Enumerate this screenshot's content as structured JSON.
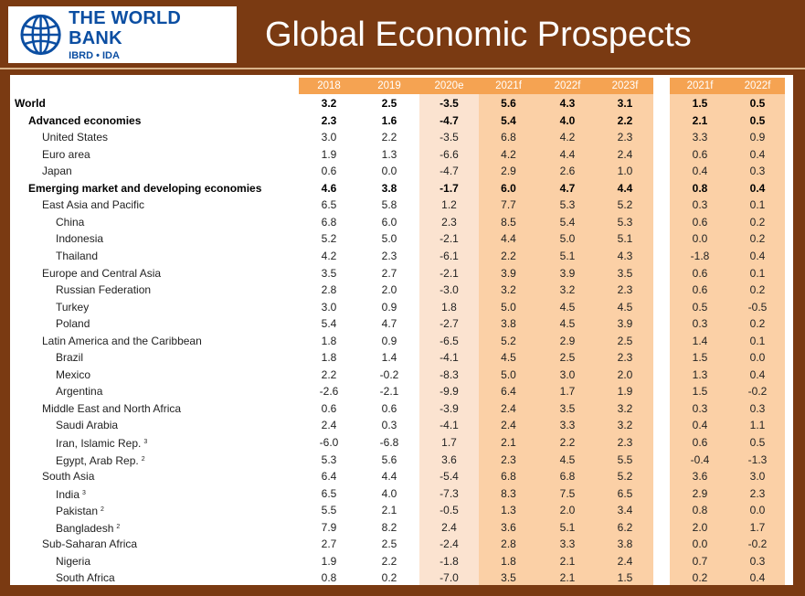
{
  "logo": {
    "main": "THE WORLD BANK",
    "sub": "IBRD • IDA",
    "icon": "globe-icon"
  },
  "title": "Global Economic Prospects",
  "colors": {
    "frame": "#7a3a12",
    "header": "#f5a352",
    "estimate_col": "#fbe3d0",
    "forecast_col": "#fbd0a6",
    "logo_blue": "#0b4ea2"
  },
  "columns": [
    "2018",
    "2019",
    "2020e",
    "2021f",
    "2022f",
    "2023f",
    "2021f",
    "2022f"
  ],
  "rows": [
    {
      "name": "World",
      "level": 0,
      "bold": true,
      "note": "",
      "values": [
        "3.2",
        "2.5",
        "-3.5",
        "5.6",
        "4.3",
        "3.1",
        "1.5",
        "0.5"
      ]
    },
    {
      "name": "Advanced economies",
      "level": 1,
      "bold": true,
      "note": "",
      "values": [
        "2.3",
        "1.6",
        "-4.7",
        "5.4",
        "4.0",
        "2.2",
        "2.1",
        "0.5"
      ]
    },
    {
      "name": "United States",
      "level": 2,
      "bold": false,
      "note": "",
      "values": [
        "3.0",
        "2.2",
        "-3.5",
        "6.8",
        "4.2",
        "2.3",
        "3.3",
        "0.9"
      ]
    },
    {
      "name": "Euro area",
      "level": 2,
      "bold": false,
      "note": "",
      "values": [
        "1.9",
        "1.3",
        "-6.6",
        "4.2",
        "4.4",
        "2.4",
        "0.6",
        "0.4"
      ]
    },
    {
      "name": "Japan",
      "level": 2,
      "bold": false,
      "note": "",
      "values": [
        "0.6",
        "0.0",
        "-4.7",
        "2.9",
        "2.6",
        "1.0",
        "0.4",
        "0.3"
      ]
    },
    {
      "name": "Emerging market and developing economies",
      "level": 1,
      "bold": true,
      "note": "",
      "values": [
        "4.6",
        "3.8",
        "-1.7",
        "6.0",
        "4.7",
        "4.4",
        "0.8",
        "0.4"
      ]
    },
    {
      "name": "East Asia and Pacific",
      "level": 2,
      "bold": false,
      "note": "",
      "values": [
        "6.5",
        "5.8",
        "1.2",
        "7.7",
        "5.3",
        "5.2",
        "0.3",
        "0.1"
      ]
    },
    {
      "name": "China",
      "level": 3,
      "bold": false,
      "note": "",
      "values": [
        "6.8",
        "6.0",
        "2.3",
        "8.5",
        "5.4",
        "5.3",
        "0.6",
        "0.2"
      ]
    },
    {
      "name": "Indonesia",
      "level": 3,
      "bold": false,
      "note": "",
      "values": [
        "5.2",
        "5.0",
        "-2.1",
        "4.4",
        "5.0",
        "5.1",
        "0.0",
        "0.2"
      ]
    },
    {
      "name": "Thailand",
      "level": 3,
      "bold": false,
      "note": "",
      "values": [
        "4.2",
        "2.3",
        "-6.1",
        "2.2",
        "5.1",
        "4.3",
        "-1.8",
        "0.4"
      ]
    },
    {
      "name": "Europe and Central Asia",
      "level": 2,
      "bold": false,
      "note": "",
      "values": [
        "3.5",
        "2.7",
        "-2.1",
        "3.9",
        "3.9",
        "3.5",
        "0.6",
        "0.1"
      ]
    },
    {
      "name": "Russian Federation",
      "level": 3,
      "bold": false,
      "note": "",
      "values": [
        "2.8",
        "2.0",
        "-3.0",
        "3.2",
        "3.2",
        "2.3",
        "0.6",
        "0.2"
      ]
    },
    {
      "name": "Turkey",
      "level": 3,
      "bold": false,
      "note": "",
      "values": [
        "3.0",
        "0.9",
        "1.8",
        "5.0",
        "4.5",
        "4.5",
        "0.5",
        "-0.5"
      ]
    },
    {
      "name": "Poland",
      "level": 3,
      "bold": false,
      "note": "",
      "values": [
        "5.4",
        "4.7",
        "-2.7",
        "3.8",
        "4.5",
        "3.9",
        "0.3",
        "0.2"
      ]
    },
    {
      "name": "Latin America and the Caribbean",
      "level": 2,
      "bold": false,
      "note": "",
      "values": [
        "1.8",
        "0.9",
        "-6.5",
        "5.2",
        "2.9",
        "2.5",
        "1.4",
        "0.1"
      ]
    },
    {
      "name": "Brazil",
      "level": 3,
      "bold": false,
      "note": "",
      "values": [
        "1.8",
        "1.4",
        "-4.1",
        "4.5",
        "2.5",
        "2.3",
        "1.5",
        "0.0"
      ]
    },
    {
      "name": "Mexico",
      "level": 3,
      "bold": false,
      "note": "",
      "values": [
        "2.2",
        "-0.2",
        "-8.3",
        "5.0",
        "3.0",
        "2.0",
        "1.3",
        "0.4"
      ]
    },
    {
      "name": "Argentina",
      "level": 3,
      "bold": false,
      "note": "",
      "values": [
        "-2.6",
        "-2.1",
        "-9.9",
        "6.4",
        "1.7",
        "1.9",
        "1.5",
        "-0.2"
      ]
    },
    {
      "name": "Middle East and North Africa",
      "level": 2,
      "bold": false,
      "note": "",
      "values": [
        "0.6",
        "0.6",
        "-3.9",
        "2.4",
        "3.5",
        "3.2",
        "0.3",
        "0.3"
      ]
    },
    {
      "name": "Saudi Arabia",
      "level": 3,
      "bold": false,
      "note": "",
      "values": [
        "2.4",
        "0.3",
        "-4.1",
        "2.4",
        "3.3",
        "3.2",
        "0.4",
        "1.1"
      ]
    },
    {
      "name": "Iran, Islamic Rep.",
      "level": 3,
      "bold": false,
      "note": "3",
      "values": [
        "-6.0",
        "-6.8",
        "1.7",
        "2.1",
        "2.2",
        "2.3",
        "0.6",
        "0.5"
      ]
    },
    {
      "name": "Egypt, Arab Rep.",
      "level": 3,
      "bold": false,
      "note": "2",
      "values": [
        "5.3",
        "5.6",
        "3.6",
        "2.3",
        "4.5",
        "5.5",
        "-0.4",
        "-1.3"
      ]
    },
    {
      "name": "South Asia",
      "level": 2,
      "bold": false,
      "note": "",
      "values": [
        "6.4",
        "4.4",
        "-5.4",
        "6.8",
        "6.8",
        "5.2",
        "3.6",
        "3.0"
      ]
    },
    {
      "name": "India",
      "level": 3,
      "bold": false,
      "note": "3",
      "values": [
        "6.5",
        "4.0",
        "-7.3",
        "8.3",
        "7.5",
        "6.5",
        "2.9",
        "2.3"
      ]
    },
    {
      "name": "Pakistan",
      "level": 3,
      "bold": false,
      "note": "2",
      "values": [
        "5.5",
        "2.1",
        "-0.5",
        "1.3",
        "2.0",
        "3.4",
        "0.8",
        "0.0"
      ]
    },
    {
      "name": "Bangladesh",
      "level": 3,
      "bold": false,
      "note": "2",
      "values": [
        "7.9",
        "8.2",
        "2.4",
        "3.6",
        "5.1",
        "6.2",
        "2.0",
        "1.7"
      ]
    },
    {
      "name": "Sub-Saharan Africa",
      "level": 2,
      "bold": false,
      "note": "",
      "values": [
        "2.7",
        "2.5",
        "-2.4",
        "2.8",
        "3.3",
        "3.8",
        "0.0",
        "-0.2"
      ]
    },
    {
      "name": "Nigeria",
      "level": 3,
      "bold": false,
      "note": "",
      "values": [
        "1.9",
        "2.2",
        "-1.8",
        "1.8",
        "2.1",
        "2.4",
        "0.7",
        "0.3"
      ]
    },
    {
      "name": "South Africa",
      "level": 3,
      "bold": false,
      "note": "",
      "values": [
        "0.8",
        "0.2",
        "-7.0",
        "3.5",
        "2.1",
        "1.5",
        "0.2",
        "0.4"
      ]
    }
  ]
}
